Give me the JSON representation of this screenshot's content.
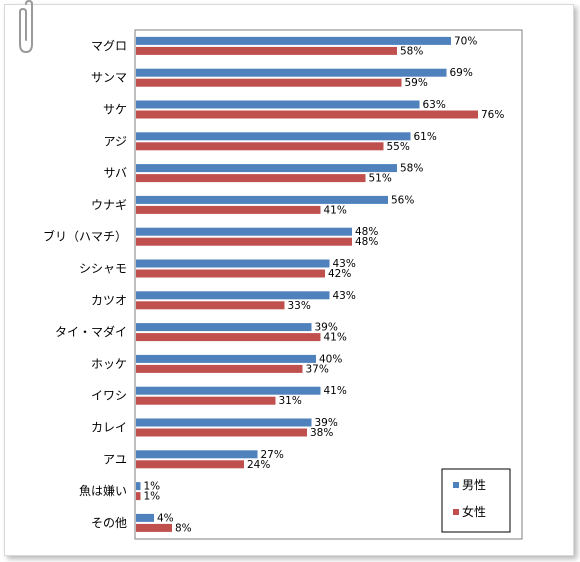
{
  "chart_data": {
    "type": "bar",
    "orientation": "horizontal",
    "categories": [
      "マグロ",
      "サンマ",
      "サケ",
      "アジ",
      "サバ",
      "ウナギ",
      "ブリ（ハマチ）",
      "シシャモ",
      "カツオ",
      "タイ・マダイ",
      "ホッケ",
      "イワシ",
      "カレイ",
      "アユ",
      "魚は嫌い",
      "その他"
    ],
    "series": [
      {
        "name": "男性",
        "color": "#4f81bd",
        "values": [
          70,
          69,
          63,
          61,
          58,
          56,
          48,
          43,
          43,
          39,
          40,
          41,
          39,
          27,
          1,
          4
        ]
      },
      {
        "name": "女性",
        "color": "#c0504d",
        "values": [
          58,
          59,
          76,
          55,
          51,
          41,
          48,
          42,
          33,
          41,
          37,
          31,
          38,
          24,
          1,
          8
        ]
      }
    ],
    "value_suffix": "%",
    "xlim": [
      0,
      80
    ],
    "legend_position": "bottom-right",
    "grid": false
  }
}
